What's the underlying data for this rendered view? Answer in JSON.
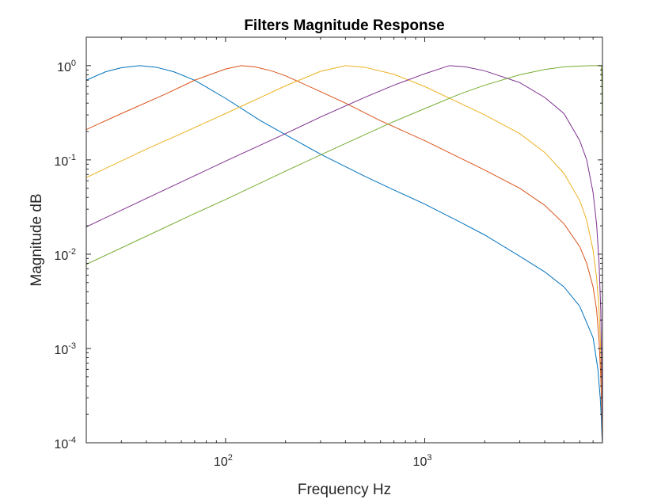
{
  "chart_data": {
    "type": "line",
    "title": "Filters Magnitude Response",
    "xlabel": "Frequency Hz",
    "ylabel": "Magnitude dB",
    "xscale": "log",
    "yscale": "log",
    "xlim": [
      20,
      7800
    ],
    "ylim": [
      0.0001,
      2
    ],
    "grid": false,
    "x_ticks": [
      {
        "value": 100,
        "base": "10",
        "exp": "2"
      },
      {
        "value": 1000,
        "base": "10",
        "exp": "3"
      }
    ],
    "y_ticks": [
      {
        "value": 1,
        "base": "10",
        "exp": "0"
      },
      {
        "value": 0.1,
        "base": "10",
        "exp": "-1"
      },
      {
        "value": 0.01,
        "base": "10",
        "exp": "-2"
      },
      {
        "value": 0.001,
        "base": "10",
        "exp": "-3"
      },
      {
        "value": 0.0001,
        "base": "10",
        "exp": "-4"
      }
    ],
    "series": [
      {
        "color": "#0072BD",
        "x": [
          20,
          25,
          30,
          37,
          45,
          55,
          70,
          100,
          150,
          200,
          300,
          500,
          700,
          1000,
          1500,
          2000,
          3000,
          4000,
          5000,
          6000,
          7000,
          7400,
          7600,
          7700,
          7750,
          7800
        ],
        "y": [
          0.7,
          0.86,
          0.95,
          1.0,
          0.96,
          0.86,
          0.7,
          0.45,
          0.26,
          0.185,
          0.115,
          0.067,
          0.048,
          0.034,
          0.022,
          0.016,
          0.0095,
          0.0065,
          0.0045,
          0.0028,
          0.0013,
          0.0006,
          0.0003,
          0.00018,
          0.00012,
          0.0001
        ]
      },
      {
        "color": "#D95319",
        "x": [
          20,
          30,
          50,
          70,
          100,
          120,
          140,
          170,
          200,
          300,
          400,
          600,
          1000,
          1500,
          2000,
          3000,
          4000,
          5000,
          6000,
          6500,
          7000,
          7300,
          7500,
          7650,
          7750,
          7800
        ],
        "y": [
          0.21,
          0.31,
          0.5,
          0.7,
          0.92,
          1.0,
          0.97,
          0.88,
          0.78,
          0.53,
          0.4,
          0.26,
          0.16,
          0.105,
          0.078,
          0.05,
          0.033,
          0.021,
          0.012,
          0.008,
          0.0045,
          0.0025,
          0.0012,
          0.0005,
          0.00018,
          0.0001
        ]
      },
      {
        "color": "#EDB120",
        "x": [
          20,
          40,
          60,
          100,
          150,
          200,
          300,
          400,
          500,
          700,
          1000,
          1500,
          2000,
          3000,
          4000,
          5000,
          6000,
          6500,
          7000,
          7300,
          7500,
          7650,
          7750,
          7800
        ],
        "y": [
          0.065,
          0.13,
          0.19,
          0.31,
          0.46,
          0.61,
          0.87,
          1.0,
          0.96,
          0.81,
          0.6,
          0.4,
          0.3,
          0.19,
          0.12,
          0.072,
          0.037,
          0.023,
          0.011,
          0.0055,
          0.0025,
          0.0009,
          0.00025,
          0.0001
        ]
      },
      {
        "color": "#7E2F8E",
        "x": [
          20,
          40,
          70,
          100,
          200,
          300,
          500,
          700,
          1000,
          1330,
          1600,
          2000,
          3000,
          4000,
          5000,
          6000,
          6500,
          7000,
          7300,
          7500,
          7650,
          7750,
          7800
        ],
        "y": [
          0.0195,
          0.039,
          0.068,
          0.097,
          0.19,
          0.285,
          0.46,
          0.62,
          0.82,
          1.0,
          0.97,
          0.88,
          0.66,
          0.46,
          0.31,
          0.16,
          0.1,
          0.045,
          0.02,
          0.008,
          0.0025,
          0.0004,
          0.0001
        ]
      },
      {
        "color": "#77AC30",
        "x": [
          20,
          40,
          70,
          100,
          200,
          300,
          500,
          700,
          1000,
          1500,
          2000,
          3000,
          4000,
          5000,
          6000,
          7000,
          7500,
          7700,
          7750,
          7780,
          7800
        ],
        "y": [
          0.0078,
          0.0155,
          0.027,
          0.038,
          0.076,
          0.113,
          0.185,
          0.255,
          0.35,
          0.5,
          0.62,
          0.8,
          0.91,
          0.97,
          0.99,
          1.0,
          1.0,
          0.99,
          0.7,
          0.3,
          0.1
        ]
      }
    ]
  }
}
